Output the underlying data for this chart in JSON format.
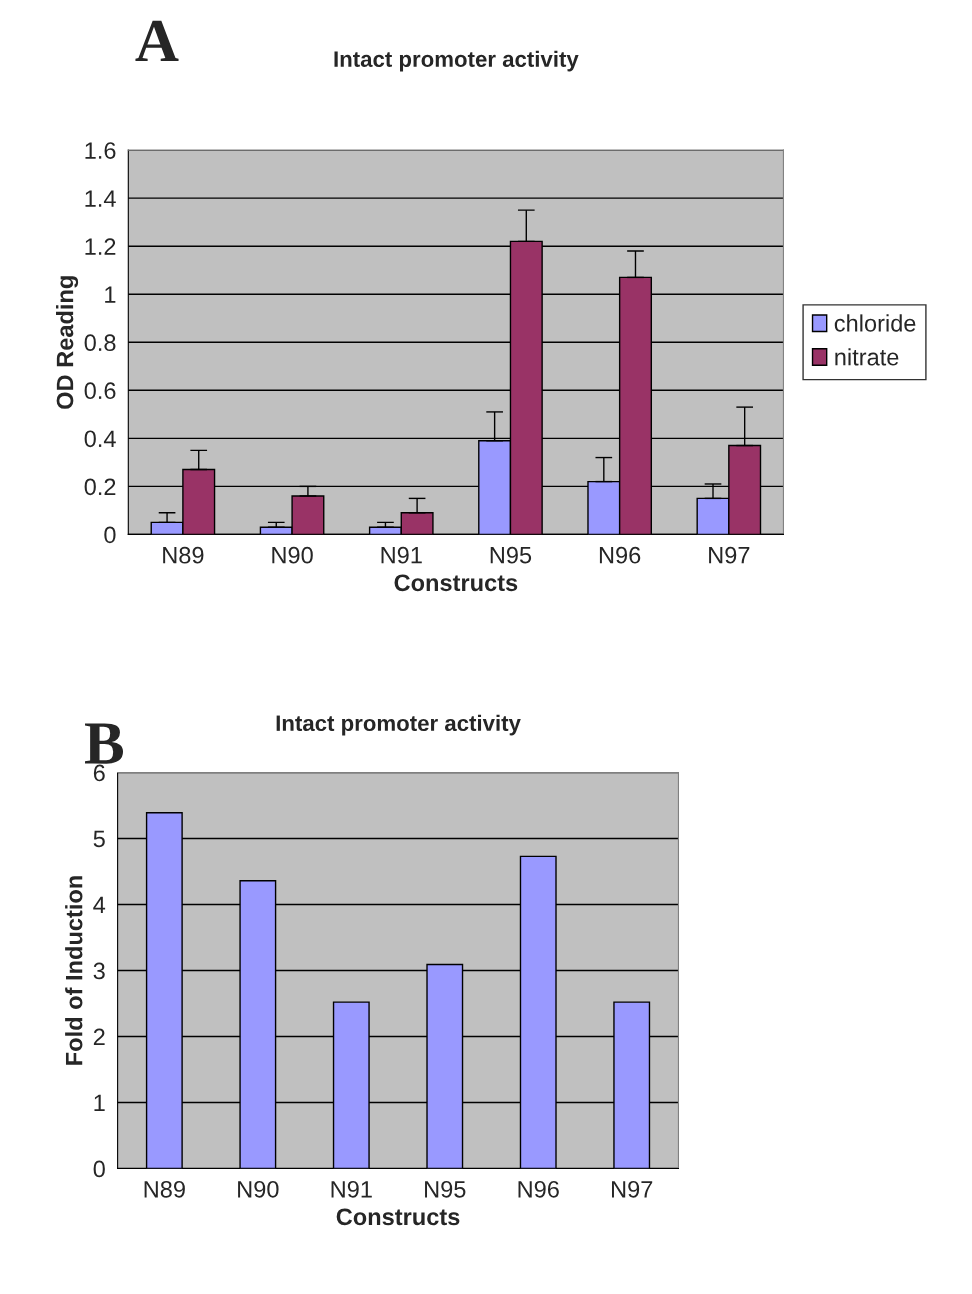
{
  "chart_data": [
    {
      "type": "bar",
      "title": "Intact promoter activity",
      "xlabel": "Constructs",
      "ylabel": "OD Reading",
      "annotations": [
        "A"
      ],
      "categories": [
        "N89",
        "N90",
        "N91",
        "N95",
        "N96",
        "N97"
      ],
      "series": [
        {
          "name": "chloride",
          "color": "#9999ff",
          "values": [
            0.05,
            0.03,
            0.03,
            0.39,
            0.22,
            0.15
          ],
          "errors": [
            [
              0.05,
              0.09
            ],
            [
              0.03,
              0.05
            ],
            [
              0.03,
              0.05
            ],
            [
              0.39,
              0.51
            ],
            [
              0.22,
              0.32
            ],
            [
              0.15,
              0.21
            ]
          ]
        },
        {
          "name": "nitrate",
          "color": "#993366",
          "values": [
            0.27,
            0.16,
            0.09,
            1.22,
            1.07,
            0.37
          ],
          "errors": [
            [
              0.27,
              0.35
            ],
            [
              0.16,
              0.2
            ],
            [
              0.09,
              0.15
            ],
            [
              1.22,
              1.35
            ],
            [
              1.07,
              1.18
            ],
            [
              0.37,
              0.53
            ]
          ]
        }
      ],
      "ylim": [
        0,
        1.6
      ],
      "yticks": [
        0,
        0.2,
        0.4,
        0.6,
        0.8,
        1,
        1.2,
        1.4,
        1.6
      ],
      "grid": "y",
      "legend": "right"
    },
    {
      "type": "bar",
      "title": "Intact promoter activity",
      "xlabel": "Constructs",
      "ylabel": "Fold of Induction",
      "annotations": [
        "B"
      ],
      "categories": [
        "N89",
        "N90",
        "N91",
        "N95",
        "N96",
        "N97"
      ],
      "series": [
        {
          "color": "#9999ff",
          "values": [
            5.39,
            4.36,
            2.52,
            3.09,
            4.73,
            2.52
          ]
        }
      ],
      "ylim": [
        0,
        6
      ],
      "yticks": [
        0,
        1,
        2,
        3,
        4,
        5,
        6
      ],
      "grid": "y",
      "legend": false
    }
  ]
}
